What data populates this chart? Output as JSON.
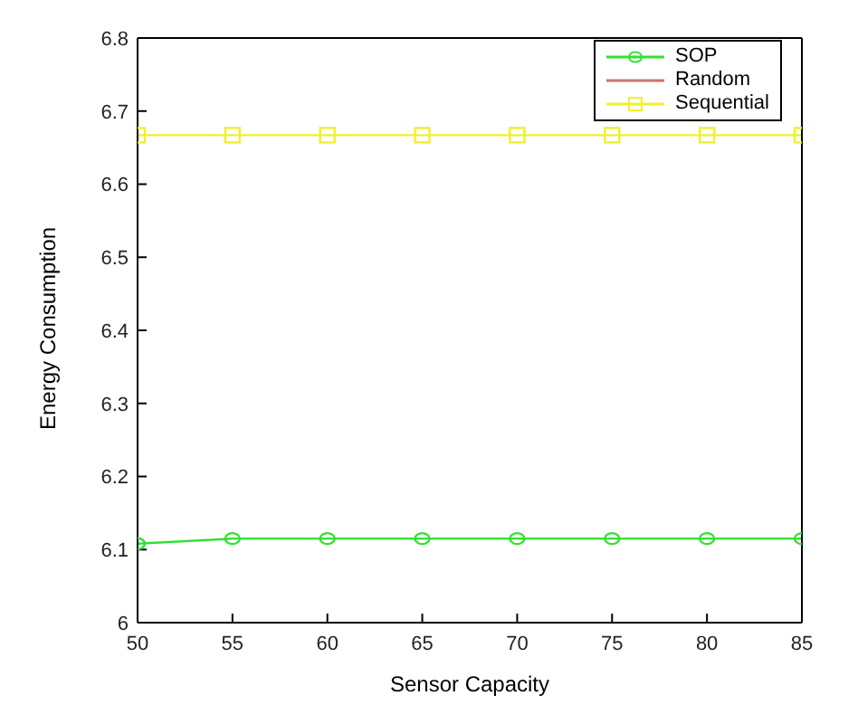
{
  "chart_data": {
    "type": "line",
    "xlabel": "Sensor Capacity",
    "ylabel": "Energy Consumption",
    "x": [
      50,
      55,
      60,
      65,
      70,
      75,
      80,
      85
    ],
    "series": [
      {
        "name": "SOP",
        "color": "#33e033",
        "marker": "circle",
        "values": [
          6.108,
          6.115,
          6.115,
          6.115,
          6.115,
          6.115,
          6.115,
          6.115
        ]
      },
      {
        "name": "Random",
        "color": "#d07070",
        "marker": "none",
        "values": [
          null,
          null,
          null,
          null,
          null,
          null,
          null,
          null
        ]
      },
      {
        "name": "Sequential",
        "color": "#f0f030",
        "marker": "square",
        "values": [
          6.667,
          6.667,
          6.667,
          6.667,
          6.667,
          6.667,
          6.667,
          6.667
        ]
      }
    ],
    "xlim": [
      50,
      85
    ],
    "xticks": [
      50,
      55,
      60,
      65,
      70,
      75,
      80,
      85
    ],
    "ylim": [
      6,
      6.8
    ],
    "yticks": [
      6,
      6.1,
      6.2,
      6.3,
      6.4,
      6.5,
      6.6,
      6.7,
      6.8
    ],
    "grid": false,
    "legend": "top right",
    "line_style": "solid"
  }
}
